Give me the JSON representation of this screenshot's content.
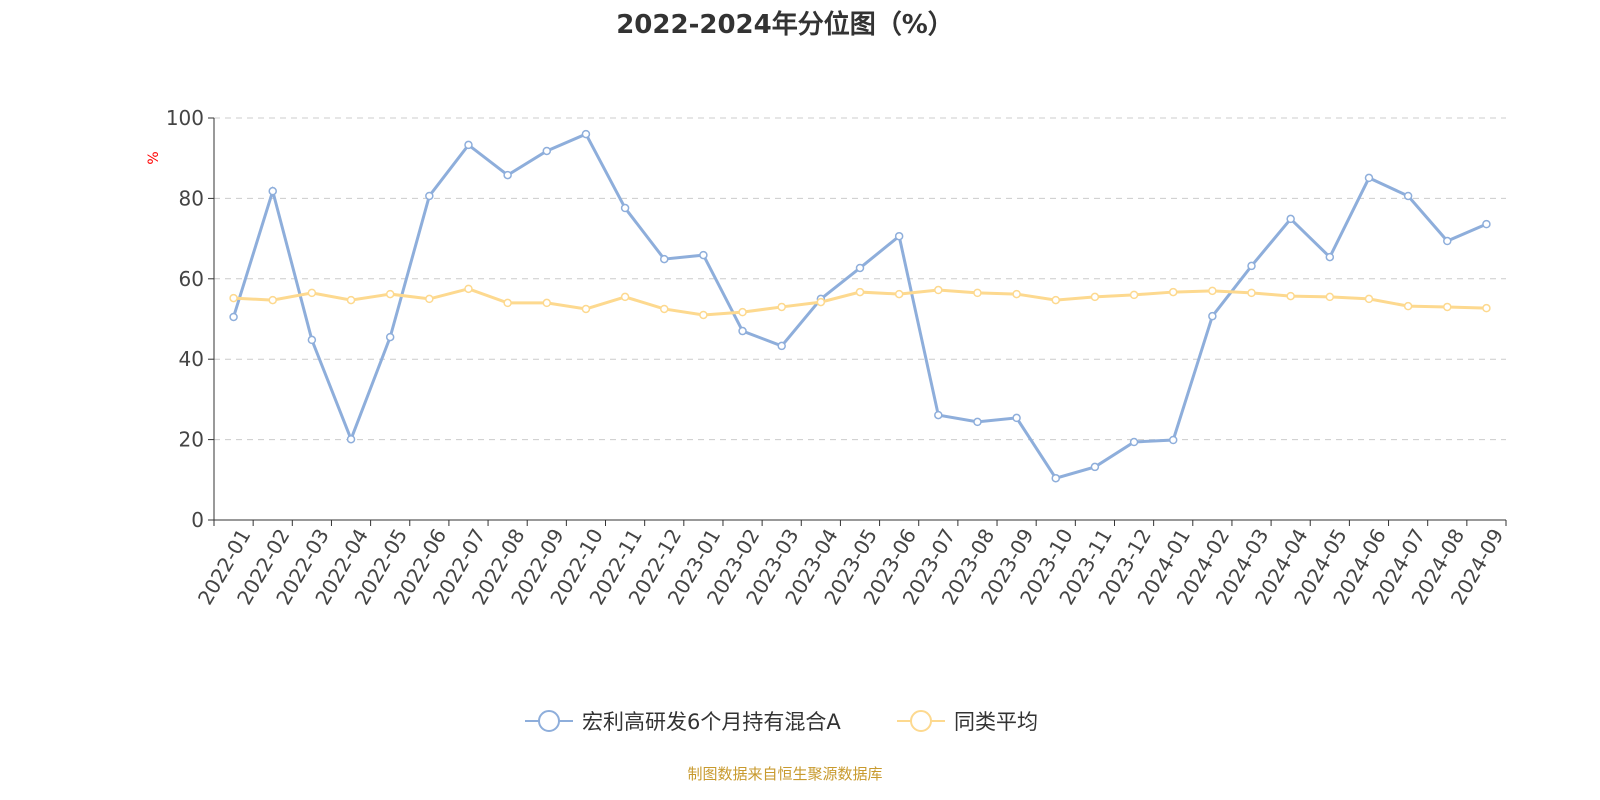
{
  "chart_data": {
    "type": "line",
    "title": "2022-2024年分位图（%）",
    "ylabel": "%",
    "xlabel": "",
    "ylim": [
      0,
      100
    ],
    "yticks": [
      0,
      20,
      40,
      60,
      80,
      100
    ],
    "grid": true,
    "legend_position": "bottom",
    "categories": [
      "2022-01",
      "2022-02",
      "2022-03",
      "2022-04",
      "2022-05",
      "2022-06",
      "2022-07",
      "2022-08",
      "2022-09",
      "2022-10",
      "2022-11",
      "2022-12",
      "2023-01",
      "2023-02",
      "2023-03",
      "2023-04",
      "2023-05",
      "2023-06",
      "2023-07",
      "2023-08",
      "2023-09",
      "2023-10",
      "2023-11",
      "2023-12",
      "2024-01",
      "2024-02",
      "2024-03",
      "2024-04",
      "2024-05",
      "2024-06",
      "2024-07",
      "2024-08",
      "2024-09"
    ],
    "series": [
      {
        "name": "宏利高研发6个月持有混合A",
        "color": "#8eaedb",
        "values": [
          50.5,
          81.8,
          44.8,
          20.1,
          45.5,
          80.6,
          93.3,
          85.8,
          91.8,
          96.0,
          77.6,
          64.9,
          65.9,
          47.0,
          43.3,
          55.0,
          62.7,
          70.6,
          26.1,
          24.4,
          25.4,
          10.4,
          13.2,
          19.4,
          19.9,
          50.7,
          63.2,
          74.9,
          65.4,
          85.1,
          80.6,
          69.4,
          73.6
        ]
      },
      {
        "name": "同类平均",
        "color": "#fdd98f",
        "values": [
          55.2,
          54.7,
          56.5,
          54.7,
          56.2,
          55.0,
          57.5,
          54.0,
          54.0,
          52.5,
          55.5,
          52.5,
          51.0,
          51.7,
          53.0,
          54.2,
          56.7,
          56.2,
          57.2,
          56.5,
          56.2,
          54.7,
          55.5,
          56.0,
          56.7,
          57.0,
          56.5,
          55.7,
          55.5,
          55.0,
          53.2,
          53.0,
          52.7
        ]
      }
    ]
  },
  "footer": "制图数据来自恒生聚源数据库",
  "colors": {
    "axis_label": "#ff0000",
    "footer": "#c89a2e",
    "grid": "#cccccc"
  }
}
